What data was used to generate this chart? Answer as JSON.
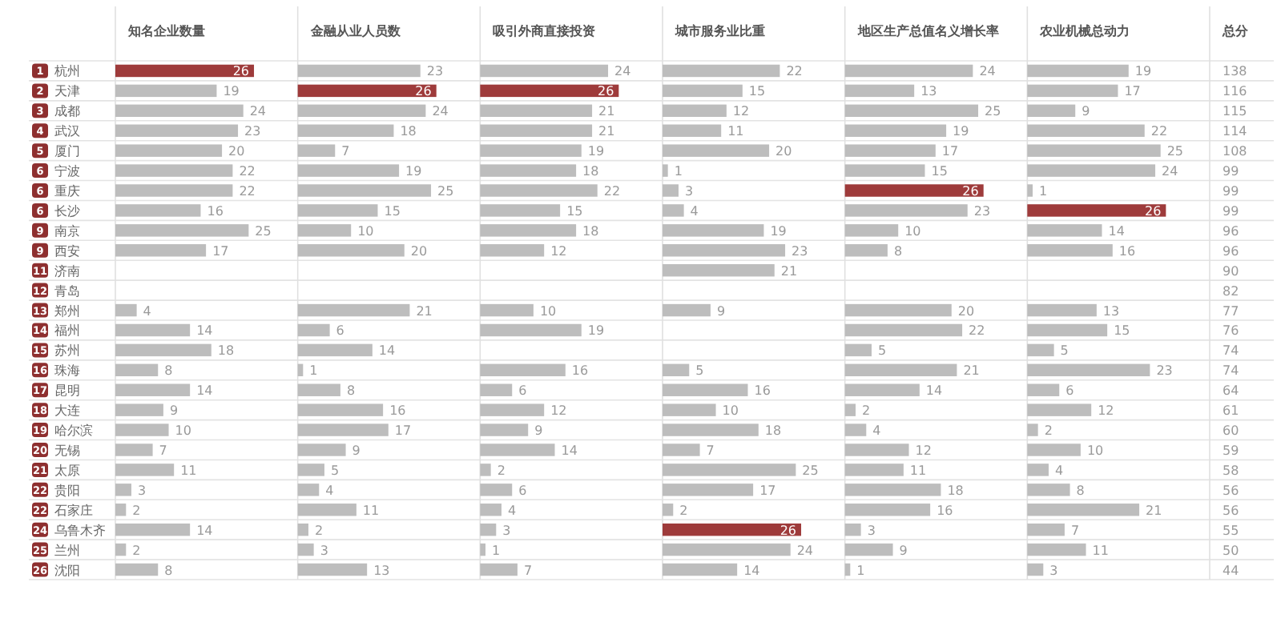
{
  "chart_data": [
    {
      "type": "bar",
      "orientation": "horizontal",
      "title": "知名企业数量",
      "categories": [
        "杭州",
        "天津",
        "成都",
        "武汉",
        "厦门",
        "宁波",
        "重庆",
        "长沙",
        "南京",
        "西安",
        "济南",
        "青岛",
        "郑州",
        "福州",
        "苏州",
        "珠海",
        "昆明",
        "大连",
        "哈尔滨",
        "无锡",
        "太原",
        "贵阳",
        "石家庄",
        "乌鲁木齐",
        "兰州",
        "沈阳"
      ],
      "values": [
        26,
        19,
        24,
        23,
        20,
        22,
        22,
        16,
        25,
        17,
        null,
        null,
        4,
        14,
        18,
        8,
        14,
        9,
        10,
        7,
        11,
        3,
        2,
        14,
        2,
        8
      ],
      "colors": [
        "#9e3b3b",
        "#bdbdbd",
        "#bdbdbd",
        "#bdbdbd",
        "#bdbdbd",
        "#bdbdbd",
        "#bdbdbd",
        "#bdbdbd",
        "#bdbdbd",
        "#bdbdbd",
        null,
        null,
        "#bdbdbd",
        "#bdbdbd",
        "#bdbdbd",
        "#bdbdbd",
        "#bdbdbd",
        "#bdbdbd",
        "#bdbdbd",
        "#bdbdbd",
        "#bdbdbd",
        "#bdbdbd",
        "#bdbdbd",
        "#bdbdbd",
        "#bdbdbd",
        "#bdbdbd"
      ],
      "data_labels": true,
      "annotations": [
        "1",
        "2",
        "3",
        "4",
        "5",
        "6",
        "6",
        "6",
        "9",
        "9",
        "11",
        "12",
        "13",
        "14",
        "15",
        "16",
        "17",
        "18",
        "19",
        "20",
        "21",
        "22",
        "22",
        "24",
        "25",
        "26"
      ]
    },
    {
      "type": "bar",
      "orientation": "horizontal",
      "title": "金融从业人员数",
      "categories": [
        null,
        null,
        null,
        null,
        null,
        null,
        null,
        null,
        null,
        null,
        null,
        null,
        null,
        null,
        null,
        null,
        null,
        null,
        null,
        null,
        null,
        null,
        null,
        null,
        null,
        null
      ],
      "values": [
        23,
        26,
        24,
        18,
        7,
        19,
        25,
        15,
        10,
        20,
        null,
        null,
        21,
        6,
        14,
        1,
        8,
        16,
        17,
        9,
        5,
        4,
        11,
        2,
        3,
        13
      ],
      "colors": [
        "#bdbdbd",
        "#9e3b3b",
        "#bdbdbd",
        "#bdbdbd",
        "#bdbdbd",
        "#bdbdbd",
        "#bdbdbd",
        "#bdbdbd",
        "#bdbdbd",
        "#bdbdbd",
        null,
        null,
        "#bdbdbd",
        "#bdbdbd",
        "#bdbdbd",
        "#bdbdbd",
        "#bdbdbd",
        "#bdbdbd",
        "#bdbdbd",
        "#bdbdbd",
        "#bdbdbd",
        "#bdbdbd",
        "#bdbdbd",
        "#bdbdbd",
        "#bdbdbd",
        "#bdbdbd"
      ],
      "data_labels": true
    },
    {
      "type": "bar",
      "orientation": "horizontal",
      "title": "吸引外商直接投资",
      "categories": [
        null,
        null,
        null,
        null,
        null,
        null,
        null,
        null,
        null,
        null,
        null,
        null,
        null,
        null,
        null,
        null,
        null,
        null,
        null,
        null,
        null,
        null,
        null,
        null,
        null,
        null
      ],
      "values": [
        24,
        26,
        21,
        21,
        19,
        18,
        22,
        15,
        18,
        12,
        null,
        null,
        10,
        19,
        null,
        16,
        6,
        12,
        9,
        14,
        2,
        6,
        4,
        3,
        1,
        7
      ],
      "colors": [
        "#bdbdbd",
        "#9e3b3b",
        "#bdbdbd",
        "#bdbdbd",
        "#bdbdbd",
        "#bdbdbd",
        "#bdbdbd",
        "#bdbdbd",
        "#bdbdbd",
        "#bdbdbd",
        null,
        null,
        "#bdbdbd",
        "#bdbdbd",
        null,
        "#bdbdbd",
        "#bdbdbd",
        "#bdbdbd",
        "#bdbdbd",
        "#bdbdbd",
        "#bdbdbd",
        "#bdbdbd",
        "#bdbdbd",
        "#bdbdbd",
        "#bdbdbd",
        "#bdbdbd"
      ],
      "data_labels": true
    },
    {
      "type": "bar",
      "orientation": "horizontal",
      "title": "城市服务业比重",
      "categories": [
        null,
        null,
        null,
        null,
        null,
        null,
        null,
        null,
        null,
        null,
        null,
        null,
        null,
        null,
        null,
        null,
        null,
        null,
        null,
        null,
        null,
        null,
        null,
        null,
        null,
        null
      ],
      "values": [
        22,
        15,
        12,
        11,
        20,
        1,
        3,
        4,
        19,
        23,
        21,
        null,
        9,
        null,
        null,
        5,
        16,
        10,
        18,
        7,
        25,
        17,
        2,
        26,
        24,
        14
      ],
      "colors": [
        "#bdbdbd",
        "#bdbdbd",
        "#bdbdbd",
        "#bdbdbd",
        "#bdbdbd",
        "#bdbdbd",
        "#bdbdbd",
        "#bdbdbd",
        "#bdbdbd",
        "#bdbdbd",
        "#bdbdbd",
        null,
        "#bdbdbd",
        null,
        null,
        "#bdbdbd",
        "#bdbdbd",
        "#bdbdbd",
        "#bdbdbd",
        "#bdbdbd",
        "#bdbdbd",
        "#bdbdbd",
        "#bdbdbd",
        "#9e3b3b",
        "#bdbdbd",
        "#bdbdbd"
      ],
      "data_labels": true
    },
    {
      "type": "bar",
      "orientation": "horizontal",
      "title": "地区生产总值名义增长率",
      "categories": [
        null,
        null,
        null,
        null,
        null,
        null,
        null,
        null,
        null,
        null,
        null,
        null,
        null,
        null,
        null,
        null,
        null,
        null,
        null,
        null,
        null,
        null,
        null,
        null,
        null,
        null
      ],
      "values": [
        24,
        13,
        25,
        19,
        17,
        15,
        26,
        23,
        10,
        8,
        null,
        null,
        20,
        22,
        5,
        21,
        14,
        2,
        4,
        12,
        11,
        18,
        16,
        3,
        9,
        1
      ],
      "colors": [
        "#bdbdbd",
        "#bdbdbd",
        "#bdbdbd",
        "#bdbdbd",
        "#bdbdbd",
        "#bdbdbd",
        "#9e3b3b",
        "#bdbdbd",
        "#bdbdbd",
        "#bdbdbd",
        null,
        null,
        "#bdbdbd",
        "#bdbdbd",
        "#bdbdbd",
        "#bdbdbd",
        "#bdbdbd",
        "#bdbdbd",
        "#bdbdbd",
        "#bdbdbd",
        "#bdbdbd",
        "#bdbdbd",
        "#bdbdbd",
        "#bdbdbd",
        "#bdbdbd",
        "#bdbdbd"
      ],
      "data_labels": true
    },
    {
      "type": "bar",
      "orientation": "horizontal",
      "title": "农业机械总动力",
      "categories": [
        null,
        null,
        null,
        null,
        null,
        null,
        null,
        null,
        null,
        null,
        null,
        null,
        null,
        null,
        null,
        null,
        null,
        null,
        null,
        null,
        null,
        null,
        null,
        null,
        null,
        null
      ],
      "values": [
        19,
        17,
        9,
        22,
        25,
        24,
        1,
        26,
        14,
        16,
        null,
        null,
        13,
        15,
        5,
        23,
        6,
        12,
        2,
        10,
        4,
        8,
        21,
        7,
        11,
        3
      ],
      "colors": [
        "#bdbdbd",
        "#bdbdbd",
        "#bdbdbd",
        "#bdbdbd",
        "#bdbdbd",
        "#bdbdbd",
        "#bdbdbd",
        "#9e3b3b",
        "#bdbdbd",
        "#bdbdbd",
        null,
        null,
        "#bdbdbd",
        "#bdbdbd",
        "#bdbdbd",
        "#bdbdbd",
        "#bdbdbd",
        "#bdbdbd",
        "#bdbdbd",
        "#bdbdbd",
        "#bdbdbd",
        "#bdbdbd",
        "#bdbdbd",
        "#bdbdbd",
        "#bdbdbd",
        "#bdbdbd"
      ],
      "data_labels": true
    },
    {
      "type": "other",
      "title": "总分",
      "values": [
        138,
        116,
        115,
        114,
        108,
        99,
        99,
        99,
        96,
        96,
        90,
        82,
        77,
        76,
        74,
        74,
        64,
        61,
        60,
        59,
        58,
        56,
        56,
        55,
        50,
        44
      ],
      "data_labels": true
    }
  ]
}
